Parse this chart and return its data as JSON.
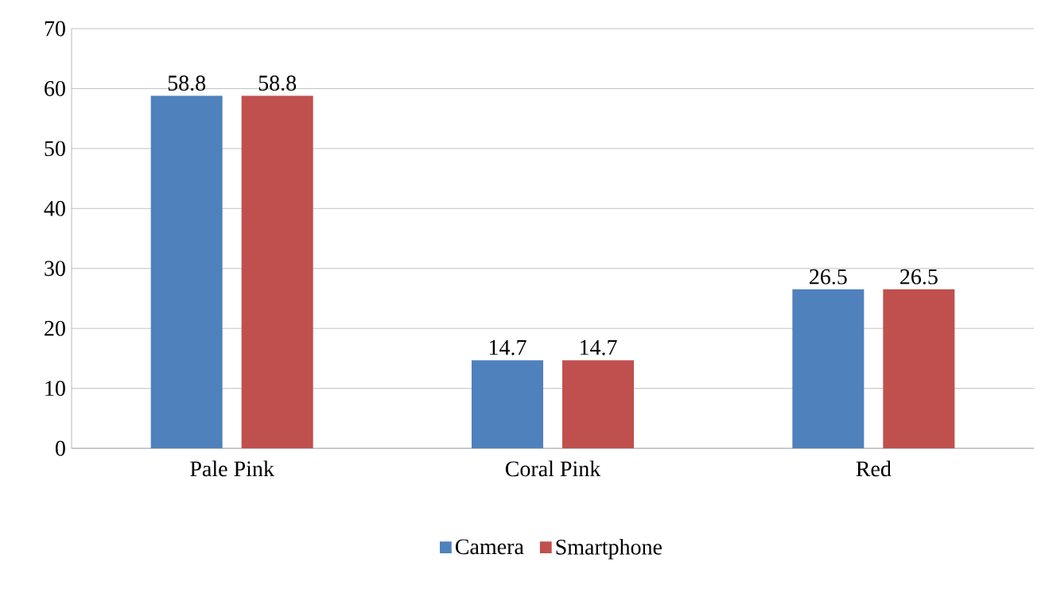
{
  "chart_data": {
    "type": "bar",
    "categories": [
      "Pale Pink",
      "Coral Pink",
      "Red"
    ],
    "series": [
      {
        "name": "Camera",
        "color": "#4f81bd",
        "values": [
          58.8,
          14.7,
          26.5
        ],
        "value_labels": [
          "58.8",
          "14.7",
          "26.5"
        ]
      },
      {
        "name": "Smartphone",
        "color": "#c0504d",
        "values": [
          58.8,
          14.7,
          26.5
        ],
        "value_labels": [
          "58.8",
          "14.7",
          "26.5"
        ]
      }
    ],
    "ylim": [
      0,
      70
    ],
    "yticks": [
      0,
      10,
      20,
      30,
      40,
      50,
      60,
      70
    ],
    "grid": "y",
    "legend": "bottom"
  }
}
